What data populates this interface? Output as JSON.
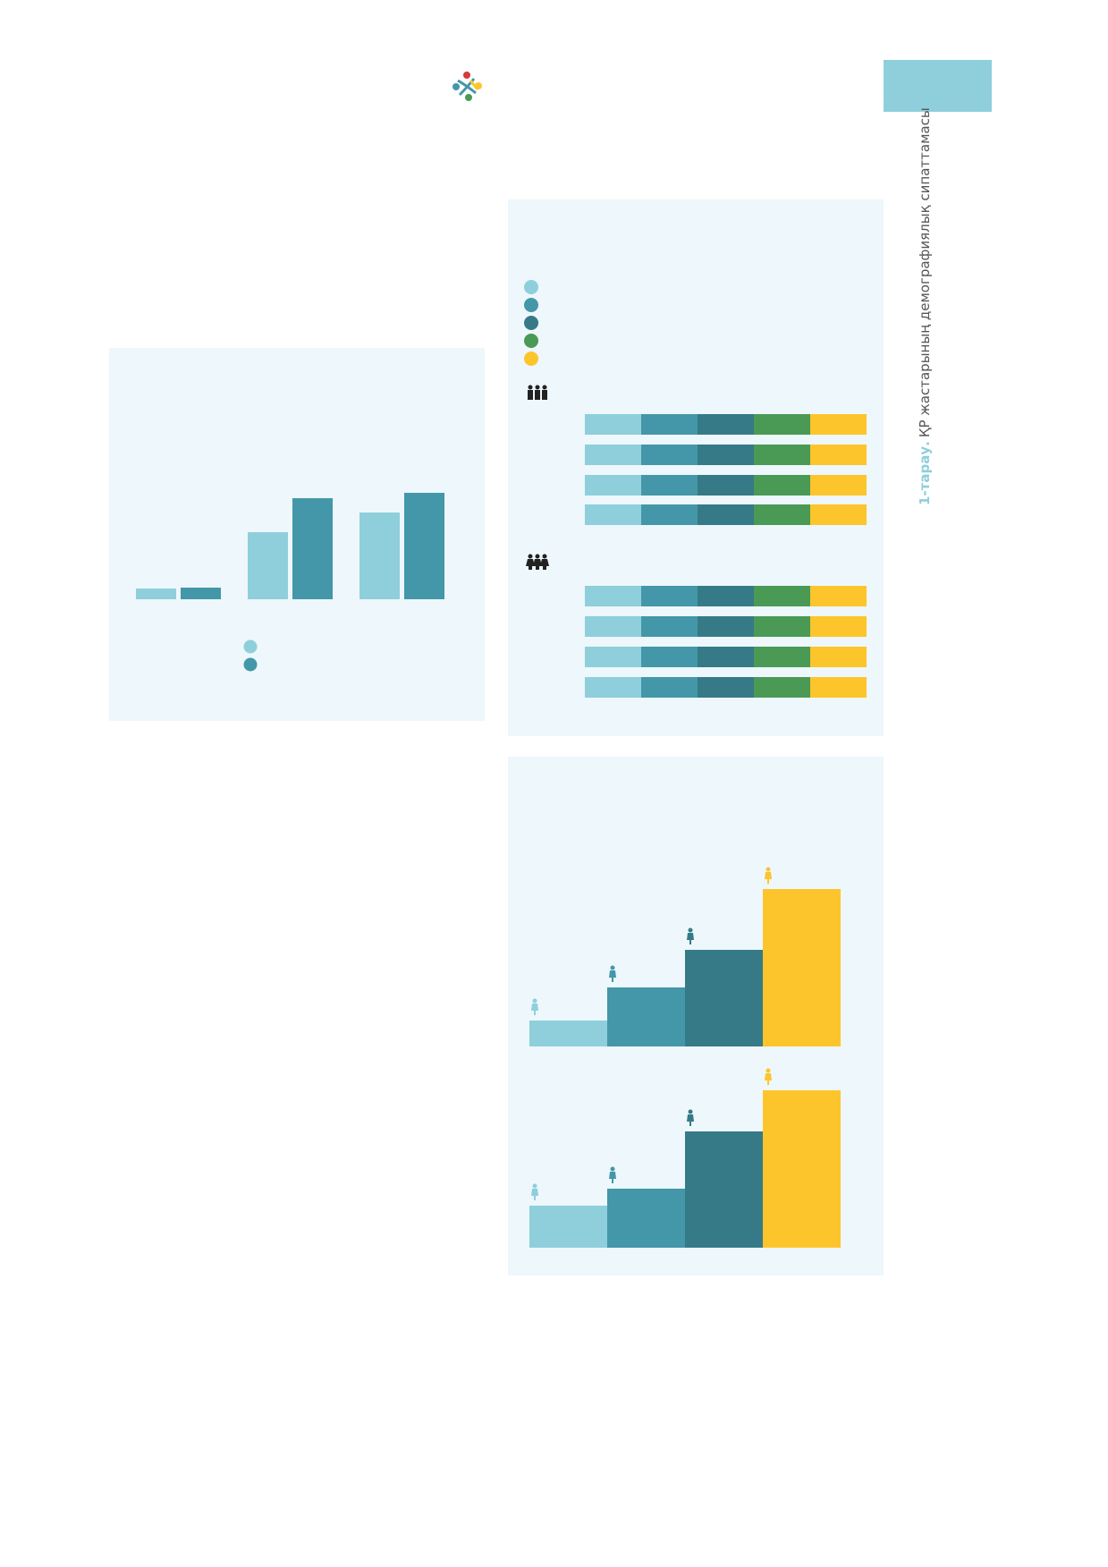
{
  "sidebar": {
    "chapter": "1-тарау.",
    "title": "ҚР жастарының демографиялық сипаттамасы"
  },
  "chart_data": [
    {
      "type": "grouped-bar",
      "categories": [
        null,
        null,
        null
      ],
      "series": [
        {
          "color": "#8ecfdb",
          "values": [
            1.2,
            7.5,
            9.7
          ]
        },
        {
          "color": "#4397a8",
          "values": [
            1.3,
            11.3,
            11.9
          ]
        }
      ]
    },
    {
      "type": "stacked-hbar",
      "categories": [
        null,
        null,
        null,
        null
      ],
      "series": [
        {
          "color": "#8ecfdb",
          "values": [
            20,
            20,
            20,
            20
          ]
        },
        {
          "color": "#4397a8",
          "values": [
            20,
            20,
            20,
            20
          ]
        },
        {
          "color": "#367a87",
          "values": [
            20,
            20,
            20,
            20
          ]
        },
        {
          "color": "#4a9a55",
          "values": [
            20,
            20,
            20,
            20
          ]
        },
        {
          "color": "#fdc52c",
          "values": [
            20,
            20,
            20,
            20
          ]
        }
      ]
    },
    {
      "type": "stacked-hbar",
      "categories": [
        null,
        null,
        null,
        null
      ],
      "series": [
        {
          "color": "#8ecfdb",
          "values": [
            20,
            20,
            20,
            20
          ]
        },
        {
          "color": "#4397a8",
          "values": [
            20,
            20,
            20,
            20
          ]
        },
        {
          "color": "#367a87",
          "values": [
            20,
            20,
            20,
            20
          ]
        },
        {
          "color": "#4a9a55",
          "values": [
            20,
            20,
            20,
            20
          ]
        },
        {
          "color": "#fdc52c",
          "values": [
            20,
            20,
            20,
            20
          ]
        }
      ]
    },
    {
      "type": "step-bar",
      "categories": [
        null,
        null,
        null,
        null
      ],
      "values": [
        2.9,
        6.6,
        10.8,
        17.6
      ],
      "colors": [
        "#8ecfdb",
        "#4397a8",
        "#367a87",
        "#fdc52c"
      ]
    },
    {
      "type": "step-bar",
      "categories": [
        null,
        null,
        null,
        null
      ],
      "values": [
        4.7,
        6.6,
        13.0,
        17.6
      ],
      "colors": [
        "#8ecfdb",
        "#4397a8",
        "#367a87",
        "#fdc52c"
      ]
    }
  ]
}
